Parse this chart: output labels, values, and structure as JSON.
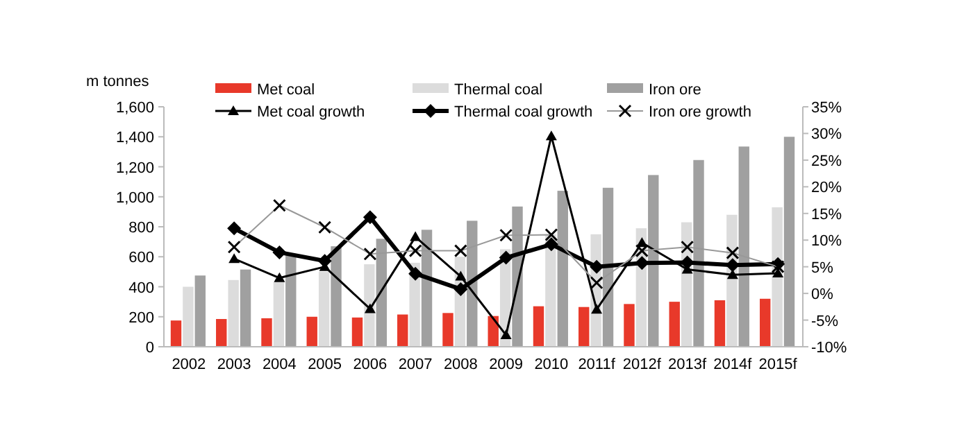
{
  "chart_data": {
    "type": "bar",
    "ylabel": "m tonnes",
    "categories": [
      "2002",
      "2003",
      "2004",
      "2005",
      "2006",
      "2007",
      "2008",
      "2009",
      "2010",
      "2011f",
      "2012f",
      "2013f",
      "2014f",
      "2015f"
    ],
    "series": [
      {
        "name": "Met coal",
        "color": "#e8392a",
        "values": [
          175,
          185,
          190,
          200,
          195,
          215,
          225,
          205,
          270,
          265,
          285,
          300,
          310,
          320
        ]
      },
      {
        "name": "Thermal coal",
        "color": "#dcdcdc",
        "values": [
          400,
          445,
          430,
          500,
          550,
          560,
          600,
          650,
          750,
          750,
          790,
          830,
          880,
          930
        ]
      },
      {
        "name": "Iron ore",
        "color": "#a0a0a0",
        "values": [
          475,
          515,
          610,
          670,
          720,
          780,
          840,
          935,
          1040,
          1060,
          1145,
          1245,
          1335,
          1400
        ]
      },
      {
        "name": "Met coal growth",
        "type": "line",
        "axis": "y2",
        "color": "#000000",
        "marker": "triangle",
        "values": [
          null,
          6.5,
          2.9,
          5,
          -2.9,
          10.6,
          3.2,
          -7.8,
          29.5,
          -3,
          9.5,
          4.5,
          3.5,
          3.8
        ]
      },
      {
        "name": "Thermal coal growth",
        "type": "line",
        "axis": "y2",
        "color": "#000000",
        "marker": "diamond",
        "values": [
          null,
          12.2,
          7.7,
          6.1,
          14.3,
          3.7,
          0.8,
          6.7,
          9.2,
          5,
          5.7,
          5.8,
          5.3,
          5.5
        ]
      },
      {
        "name": "Iron ore growth",
        "type": "line",
        "axis": "y2",
        "color": "#999999",
        "marker": "cross",
        "values": [
          null,
          8.7,
          16.5,
          12.4,
          7.4,
          8,
          8,
          10.9,
          11,
          2,
          8,
          8.7,
          7.6,
          5
        ]
      }
    ],
    "ylim": [
      0,
      1600
    ],
    "yticks": [
      0,
      {
        "value": 200,
        "label": "200"
      },
      {
        "value": 400,
        "label": "400"
      },
      {
        "value": 600,
        "label": "600"
      },
      {
        "value": 800,
        "label": "800"
      },
      {
        "value": 1000,
        "label": "1,000"
      },
      {
        "value": 1200,
        "label": "1,200"
      },
      {
        "value": 1400,
        "label": "1,400"
      },
      {
        "value": 1600,
        "label": "1,600"
      }
    ],
    "y2lim": [
      -10,
      35
    ],
    "y2ticks": [
      {
        "value": -10,
        "label": "-10%"
      },
      {
        "value": -5,
        "label": "-5%"
      },
      {
        "value": 0,
        "label": "0%"
      },
      {
        "value": 5,
        "label": "5%"
      },
      {
        "value": 10,
        "label": "10%"
      },
      {
        "value": 15,
        "label": "15%"
      },
      {
        "value": 20,
        "label": "20%"
      },
      {
        "value": 25,
        "label": "25%"
      },
      {
        "value": 30,
        "label": "30%"
      },
      {
        "value": 35,
        "label": "35%"
      }
    ],
    "legend": "top",
    "grid": false
  }
}
